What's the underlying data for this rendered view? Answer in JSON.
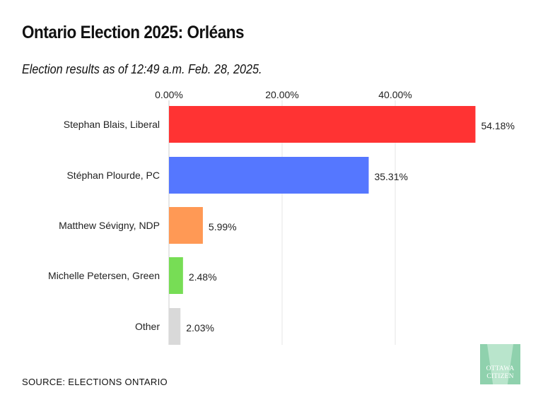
{
  "title": "Ontario Election 2025: Orléans",
  "subtitle": "Election results as of 12:49 a.m. Feb. 28, 2025.",
  "source": "SOURCE: ELECTIONS ONTARIO",
  "logo": {
    "text": "OTTAWA CITIZEN",
    "line1": "OTTAWA",
    "line2": "CITIZEN"
  },
  "chart_data": {
    "type": "bar",
    "orientation": "horizontal",
    "categories": [
      "Stephan Blais, Liberal",
      "Stéphan Plourde, PC",
      "Matthew Sévigny, NDP",
      "Michelle Petersen, Green",
      "Other"
    ],
    "values": [
      54.18,
      35.31,
      5.99,
      2.48,
      2.03
    ],
    "value_labels": [
      "54.18%",
      "35.31%",
      "5.99%",
      "2.48%",
      "2.03%"
    ],
    "colors": [
      "#ff3333",
      "#5577ff",
      "#ff9955",
      "#77dd55",
      "#d9d9d9"
    ],
    "xticks": [
      0,
      20,
      40
    ],
    "xtick_labels": [
      "0.00%",
      "20.00%",
      "40.00%"
    ],
    "xlim": [
      0,
      60
    ],
    "axis_position": "top",
    "grid": true
  }
}
